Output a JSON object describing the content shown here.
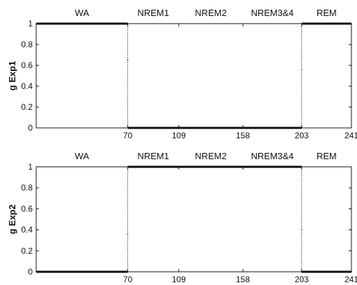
{
  "colors": {
    "ink": "#111111",
    "background": "#ffffff"
  },
  "chart_data": [
    {
      "type": "line",
      "ylabel": "g Exp1",
      "xlim": [
        0,
        241
      ],
      "ylim": [
        0,
        1
      ],
      "grid": false,
      "stage_labels": [
        {
          "label": "WA",
          "x": 35
        },
        {
          "label": "NREM1",
          "x": 89.5
        },
        {
          "label": "NREM2",
          "x": 133.5
        },
        {
          "label": "NREM3&4",
          "x": 180.5
        },
        {
          "label": "REM",
          "x": 222
        }
      ],
      "x_ticks": [
        70,
        109,
        158,
        203,
        241
      ],
      "y_ticks": [
        {
          "value": 0,
          "label": "0"
        },
        {
          "value": 0.2,
          "label": "0.2"
        },
        {
          "value": 0.4,
          "label": "0.4"
        },
        {
          "value": 0.6,
          "label": "0.6"
        },
        {
          "value": 0.8,
          "label": "0.8"
        },
        {
          "value": 1,
          "label": "1"
        }
      ],
      "x": [
        0,
        70,
        70,
        70,
        203,
        203,
        203,
        241
      ],
      "y": [
        1,
        1,
        0.65,
        0,
        0,
        0.56,
        1,
        1
      ]
    },
    {
      "type": "line",
      "ylabel": "g Exp2",
      "xlim": [
        0,
        241
      ],
      "ylim": [
        0,
        1
      ],
      "grid": false,
      "stage_labels": [
        {
          "label": "WA",
          "x": 35
        },
        {
          "label": "NREM1",
          "x": 89.5
        },
        {
          "label": "NREM2",
          "x": 133.5
        },
        {
          "label": "NREM3&4",
          "x": 180.5
        },
        {
          "label": "REM",
          "x": 222
        }
      ],
      "x_ticks": [
        70,
        109,
        158,
        203,
        241
      ],
      "y_ticks": [
        {
          "value": 0,
          "label": "0"
        },
        {
          "value": 0.2,
          "label": "0.2"
        },
        {
          "value": 0.4,
          "label": "0.4"
        },
        {
          "value": 0.6,
          "label": "0.6"
        },
        {
          "value": 0.8,
          "label": "0.8"
        },
        {
          "value": 1,
          "label": "1"
        }
      ],
      "x": [
        0,
        70,
        70,
        70,
        203,
        203,
        203,
        241
      ],
      "y": [
        0,
        0,
        0.36,
        1,
        1,
        0.4,
        0,
        0
      ]
    }
  ]
}
